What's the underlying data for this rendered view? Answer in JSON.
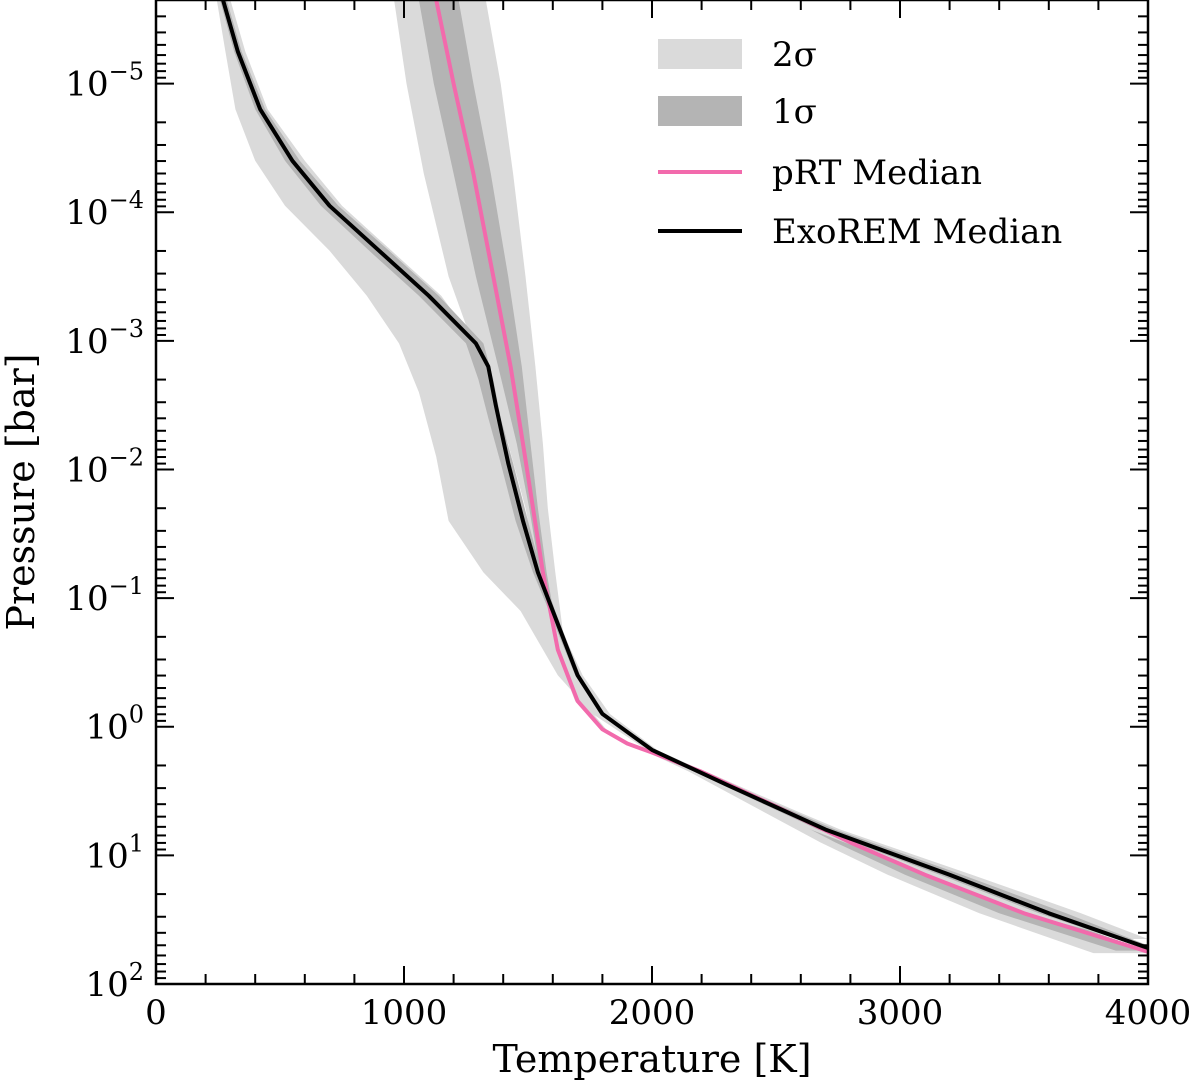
{
  "chart_data": {
    "type": "line",
    "xlabel": "Temperature [K]",
    "ylabel": "Pressure [bar]",
    "xlim": [
      0,
      4000
    ],
    "ylim_log10": [
      2,
      -5.65
    ],
    "y_scale": "log",
    "y_inverted": true,
    "x_ticks": [
      0,
      1000,
      2000,
      3000,
      4000
    ],
    "x_tick_labels": [
      "0",
      "1000",
      "2000",
      "3000",
      "4000"
    ],
    "y_ticks_log10": [
      -5,
      -4,
      -3,
      -2,
      -1,
      0,
      1,
      2
    ],
    "y_tick_labels": [
      {
        "base": "10",
        "exp": "−5"
      },
      {
        "base": "10",
        "exp": "−4"
      },
      {
        "base": "10",
        "exp": "−3"
      },
      {
        "base": "10",
        "exp": "−2"
      },
      {
        "base": "10",
        "exp": "−1"
      },
      {
        "base": "10",
        "exp": "0"
      },
      {
        "base": "10",
        "exp": "1"
      },
      {
        "base": "10",
        "exp": "2"
      }
    ],
    "legend_position": "top-right",
    "legend": [
      {
        "label": "2σ",
        "kind": "band",
        "color": "#dadada"
      },
      {
        "label": "1σ",
        "kind": "band",
        "color": "#b4b4b4"
      },
      {
        "label": "pRT Median",
        "kind": "line",
        "color": "#f26aac"
      },
      {
        "label": "ExoREM Median",
        "kind": "line",
        "color": "#000000"
      }
    ],
    "series": [
      {
        "name": "pRT Median",
        "color": "#f26aac",
        "points": [
          [
            1130,
            -5.65
          ],
          [
            1200,
            -5.0
          ],
          [
            1280,
            -4.3
          ],
          [
            1360,
            -3.5
          ],
          [
            1430,
            -2.8
          ],
          [
            1480,
            -2.2
          ],
          [
            1520,
            -1.7
          ],
          [
            1560,
            -1.2
          ],
          [
            1620,
            -0.6
          ],
          [
            1700,
            -0.2
          ],
          [
            1800,
            0.02
          ],
          [
            1900,
            0.13
          ],
          [
            2000,
            0.2
          ],
          [
            2200,
            0.35
          ],
          [
            2500,
            0.62
          ],
          [
            2800,
            0.9
          ],
          [
            3100,
            1.15
          ],
          [
            3500,
            1.45
          ],
          [
            4000,
            1.75
          ]
        ]
      },
      {
        "name": "ExoREM Median",
        "color": "#000000",
        "points": [
          [
            270,
            -5.65
          ],
          [
            330,
            -5.25
          ],
          [
            420,
            -4.8
          ],
          [
            550,
            -4.4
          ],
          [
            700,
            -4.05
          ],
          [
            900,
            -3.7
          ],
          [
            1100,
            -3.35
          ],
          [
            1290,
            -2.98
          ],
          [
            1340,
            -2.8
          ],
          [
            1370,
            -2.5
          ],
          [
            1420,
            -2.05
          ],
          [
            1480,
            -1.6
          ],
          [
            1540,
            -1.2
          ],
          [
            1600,
            -0.9
          ],
          [
            1700,
            -0.4
          ],
          [
            1800,
            -0.1
          ],
          [
            2000,
            0.18
          ],
          [
            2300,
            0.45
          ],
          [
            2700,
            0.8
          ],
          [
            3200,
            1.15
          ],
          [
            3600,
            1.45
          ],
          [
            4000,
            1.72
          ]
        ]
      }
    ],
    "bands": [
      {
        "name": "pRT 2σ",
        "color": "#dadada",
        "points": [
          [
            960,
            1330,
            -5.65
          ],
          [
            1010,
            1390,
            -5.0
          ],
          [
            1080,
            1440,
            -4.3
          ],
          [
            1180,
            1490,
            -3.5
          ],
          [
            1310,
            1530,
            -2.8
          ],
          [
            1420,
            1560,
            -2.2
          ],
          [
            1490,
            1580,
            -1.7
          ],
          [
            1540,
            1610,
            -1.2
          ],
          [
            1610,
            1650,
            -0.6
          ],
          [
            1690,
            1720,
            -0.2
          ],
          [
            1795,
            1815,
            0.02
          ],
          [
            1895,
            1915,
            0.13
          ],
          [
            1985,
            2020,
            0.2
          ],
          [
            2150,
            2220,
            0.35
          ],
          [
            2410,
            2540,
            0.62
          ],
          [
            2680,
            2860,
            0.9
          ],
          [
            2950,
            3180,
            1.15
          ],
          [
            3320,
            3600,
            1.45
          ],
          [
            3780,
            4000,
            1.76
          ]
        ]
      },
      {
        "name": "pRT 1σ",
        "color": "#b4b4b4",
        "points": [
          [
            1060,
            1220,
            -5.65
          ],
          [
            1120,
            1280,
            -5.0
          ],
          [
            1200,
            1350,
            -4.3
          ],
          [
            1290,
            1420,
            -3.5
          ],
          [
            1380,
            1475,
            -2.8
          ],
          [
            1455,
            1510,
            -2.2
          ],
          [
            1505,
            1540,
            -1.7
          ],
          [
            1548,
            1575,
            -1.2
          ],
          [
            1612,
            1630,
            -0.6
          ],
          [
            1694,
            1708,
            -0.2
          ],
          [
            1796,
            1806,
            0.02
          ],
          [
            1896,
            1906,
            0.13
          ],
          [
            1990,
            2010,
            0.2
          ],
          [
            2175,
            2210,
            0.35
          ],
          [
            2460,
            2520,
            0.62
          ],
          [
            2740,
            2830,
            0.9
          ],
          [
            3020,
            3150,
            1.15
          ],
          [
            3400,
            3560,
            1.45
          ],
          [
            3870,
            4000,
            1.74
          ]
        ]
      },
      {
        "name": "ExoREM 2σ",
        "color": "#dadada",
        "points": [
          [
            245,
            300,
            -5.65
          ],
          [
            280,
            360,
            -5.25
          ],
          [
            320,
            450,
            -4.8
          ],
          [
            400,
            600,
            -4.4
          ],
          [
            520,
            750,
            -4.05
          ],
          [
            700,
            950,
            -3.7
          ],
          [
            850,
            1150,
            -3.35
          ],
          [
            980,
            1290,
            -2.98
          ],
          [
            1060,
            1350,
            -2.6
          ],
          [
            1130,
            1420,
            -2.1
          ],
          [
            1180,
            1480,
            -1.6
          ],
          [
            1320,
            1540,
            -1.2
          ],
          [
            1470,
            1600,
            -0.9
          ],
          [
            1620,
            1720,
            -0.4
          ],
          [
            1760,
            1830,
            -0.1
          ],
          [
            1980,
            2020,
            0.18
          ],
          [
            2260,
            2330,
            0.45
          ],
          [
            2640,
            2760,
            0.8
          ],
          [
            3120,
            3290,
            1.15
          ],
          [
            3500,
            3730,
            1.45
          ],
          [
            3900,
            4000,
            1.65
          ]
        ]
      },
      {
        "name": "ExoREM 1σ",
        "color": "#b4b4b4",
        "points": [
          [
            258,
            285,
            -5.65
          ],
          [
            315,
            345,
            -5.25
          ],
          [
            400,
            440,
            -4.8
          ],
          [
            520,
            580,
            -4.4
          ],
          [
            665,
            735,
            -4.05
          ],
          [
            860,
            940,
            -3.7
          ],
          [
            1060,
            1140,
            -3.35
          ],
          [
            1250,
            1320,
            -2.98
          ],
          [
            1300,
            1360,
            -2.7
          ],
          [
            1340,
            1390,
            -2.4
          ],
          [
            1390,
            1440,
            -2.05
          ],
          [
            1450,
            1500,
            -1.6
          ],
          [
            1520,
            1555,
            -1.2
          ],
          [
            1585,
            1610,
            -0.9
          ],
          [
            1690,
            1710,
            -0.4
          ],
          [
            1790,
            1810,
            -0.1
          ],
          [
            1992,
            2008,
            0.18
          ],
          [
            2280,
            2320,
            0.45
          ],
          [
            2670,
            2740,
            0.8
          ],
          [
            3160,
            3250,
            1.15
          ],
          [
            3560,
            3670,
            1.45
          ],
          [
            3950,
            4000,
            1.7
          ]
        ]
      }
    ]
  }
}
